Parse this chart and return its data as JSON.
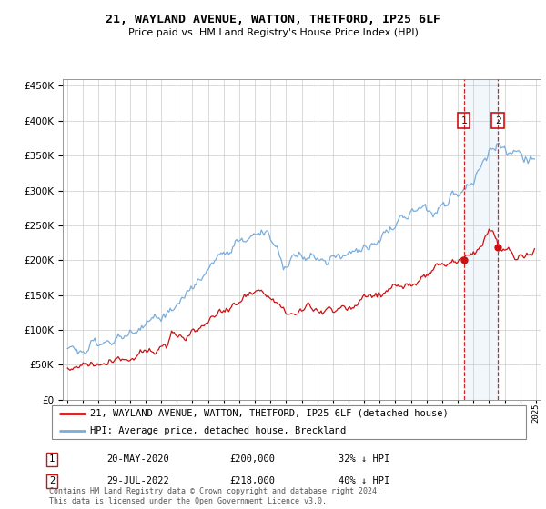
{
  "title": "21, WAYLAND AVENUE, WATTON, THETFORD, IP25 6LF",
  "subtitle": "Price paid vs. HM Land Registry's House Price Index (HPI)",
  "legend_line1": "21, WAYLAND AVENUE, WATTON, THETFORD, IP25 6LF (detached house)",
  "legend_line2": "HPI: Average price, detached house, Breckland",
  "footnote": "Contains HM Land Registry data © Crown copyright and database right 2024.\nThis data is licensed under the Open Government Licence v3.0.",
  "sale1_label": "1",
  "sale1_date": "20-MAY-2020",
  "sale1_price": "£200,000",
  "sale1_note": "32% ↓ HPI",
  "sale2_label": "2",
  "sale2_date": "29-JUL-2022",
  "sale2_price": "£218,000",
  "sale2_note": "40% ↓ HPI",
  "hpi_color": "#7aaddc",
  "price_color": "#cc1111",
  "sale1_x": 2020.38,
  "sale2_x": 2022.57,
  "ylim": [
    0,
    460000
  ],
  "xlim_start": 1994.7,
  "xlim_end": 2025.3
}
